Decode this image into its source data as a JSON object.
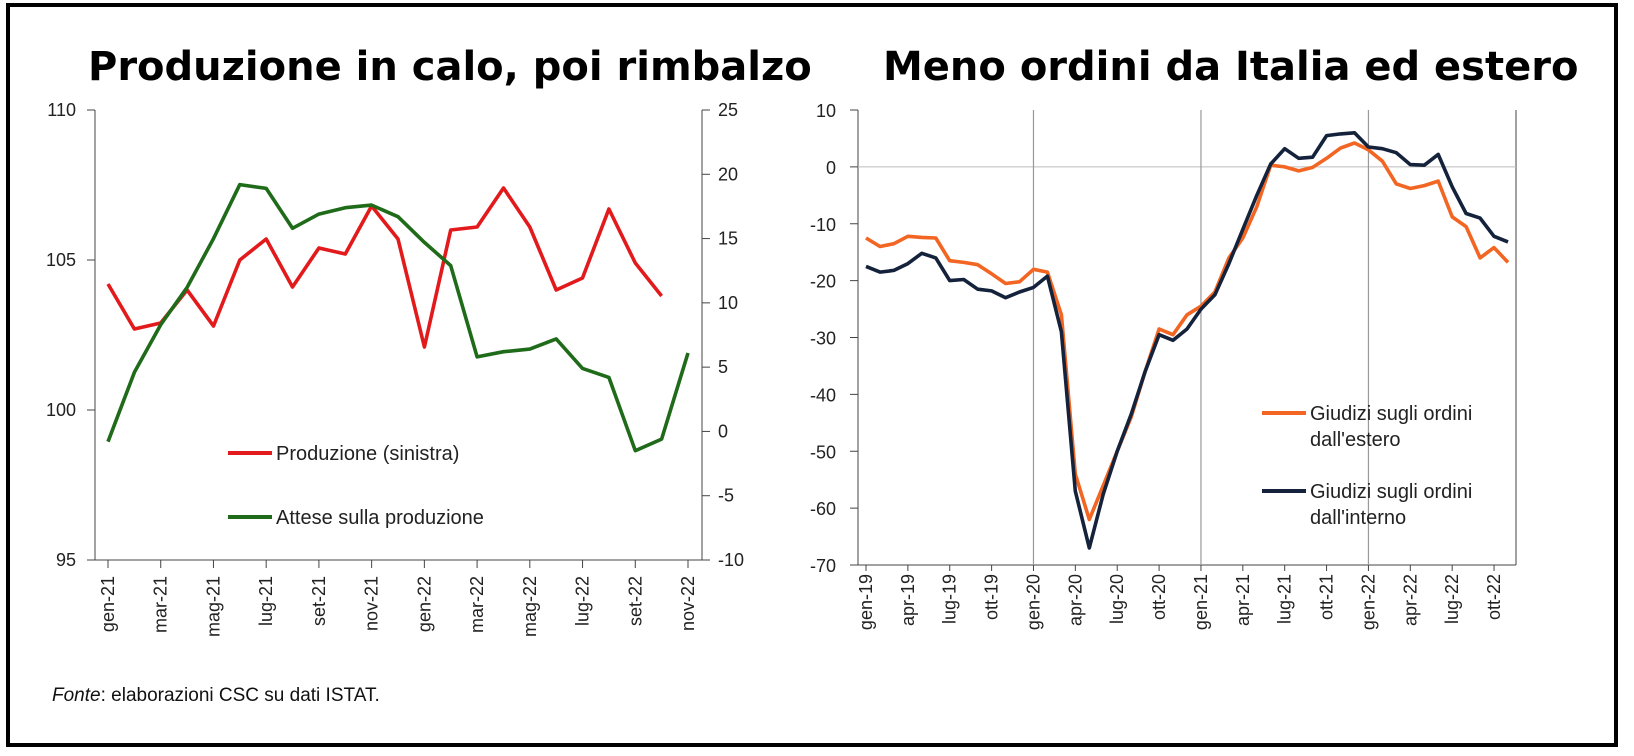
{
  "source": {
    "label": "Fonte",
    "text": ": elaborazioni CSC su dati ISTAT."
  },
  "chart_data": [
    {
      "type": "line",
      "title": "Produzione in calo, poi rimbalzo",
      "grid": false,
      "legend_position": "center-bottom",
      "x": [
        "gen-21",
        "feb-21",
        "mar-21",
        "apr-21",
        "mag-21",
        "giu-21",
        "lug-21",
        "ago-21",
        "set-21",
        "ott-21",
        "nov-21",
        "dic-21",
        "gen-22",
        "feb-22",
        "mar-22",
        "apr-22",
        "mag-22",
        "giu-22",
        "lug-22",
        "ago-22",
        "set-22",
        "ott-22",
        "nov-22"
      ],
      "x_tick_labels": [
        "gen-21",
        "mar-21",
        "mag-21",
        "lug-21",
        "set-21",
        "nov-21",
        "gen-22",
        "mar-22",
        "mag-22",
        "lug-22",
        "set-22",
        "nov-22"
      ],
      "y_left": {
        "ylim": [
          95,
          110
        ],
        "ticks": [
          "95",
          "100",
          "105",
          "110"
        ]
      },
      "y_right": {
        "ylim": [
          -10,
          25
        ],
        "ticks": [
          "-10",
          "-5",
          "0",
          "5",
          "10",
          "15",
          "20",
          "25"
        ]
      },
      "series": [
        {
          "name": "Produzione (sinistra)",
          "axis": "left",
          "color": "#e31a1c",
          "values": [
            104.2,
            102.7,
            102.9,
            104.0,
            102.8,
            105.0,
            105.7,
            104.1,
            105.4,
            105.2,
            106.8,
            105.7,
            102.1,
            106.0,
            106.1,
            107.4,
            106.1,
            104.0,
            104.4,
            106.7,
            104.9,
            103.8,
            null
          ]
        },
        {
          "name": "Attese sulla produzione",
          "axis": "right",
          "color": "#1f6b1a",
          "values": [
            -0.8,
            4.6,
            8.3,
            11.2,
            15.0,
            19.2,
            18.9,
            15.8,
            16.9,
            17.4,
            17.6,
            16.7,
            14.7,
            12.9,
            5.8,
            6.2,
            6.4,
            7.2,
            4.9,
            4.2,
            -1.5,
            -0.6,
            6.1
          ]
        }
      ]
    },
    {
      "type": "line",
      "title": "Meno ordini da Italia ed estero",
      "grid": false,
      "legend_position": "bottom-right",
      "x_tick_labels": [
        "gen-19",
        "apr-19",
        "lug-19",
        "ott-19",
        "gen-20",
        "apr-20",
        "lug-20",
        "ott-20",
        "gen-21",
        "apr-21",
        "lug-21",
        "ott-21",
        "gen-22",
        "apr-22",
        "lug-22",
        "ott-22"
      ],
      "x_first": "gen-19",
      "x_last": "nov-22",
      "vertical_lines_at": [
        "gen-20",
        "gen-21",
        "gen-22"
      ],
      "ylim": [
        -70,
        10
      ],
      "y_ticks": [
        "10",
        "0",
        "-10",
        "-20",
        "-30",
        "-40",
        "-50",
        "-60",
        "-70"
      ],
      "series": [
        {
          "name": "Giudizi sugli ordini dall'estero",
          "color": "#f26522",
          "values": [
            -12.5,
            -14.0,
            -13.5,
            -12.2,
            -12.4,
            -12.5,
            -16.5,
            -16.8,
            -17.2,
            -18.8,
            -20.5,
            -20.2,
            -18.0,
            -18.5,
            -26.0,
            -54.0,
            -62.0,
            -56.0,
            -50.0,
            -44.0,
            -36.0,
            -28.5,
            -29.5,
            -26.0,
            -24.5,
            -22.0,
            -16.0,
            -12.5,
            -7.0,
            0.3,
            0.0,
            -0.7,
            -0.1,
            1.5,
            3.3,
            4.2,
            3.0,
            1.0,
            -3.0,
            -3.8,
            -3.3,
            -2.5,
            -8.8,
            -10.5,
            -16.0,
            -14.2,
            -16.8
          ]
        },
        {
          "name": "Giudizi sugli ordini dall'interno",
          "color": "#14223b",
          "values": [
            -17.5,
            -18.5,
            -18.2,
            -17.0,
            -15.2,
            -16.0,
            -20.0,
            -19.8,
            -21.5,
            -21.8,
            -23.0,
            -22.0,
            -21.2,
            -19.2,
            -29.0,
            -57.0,
            -67.0,
            -57.5,
            -50.0,
            -43.5,
            -36.0,
            -29.5,
            -30.5,
            -28.5,
            -25.0,
            -22.5,
            -17.0,
            -11.0,
            -5.0,
            0.5,
            3.2,
            1.5,
            1.7,
            5.5,
            5.8,
            6.0,
            3.5,
            3.2,
            2.5,
            0.4,
            0.3,
            2.2,
            -3.5,
            -8.2,
            -9.0,
            -12.2,
            -13.2
          ]
        }
      ]
    }
  ]
}
